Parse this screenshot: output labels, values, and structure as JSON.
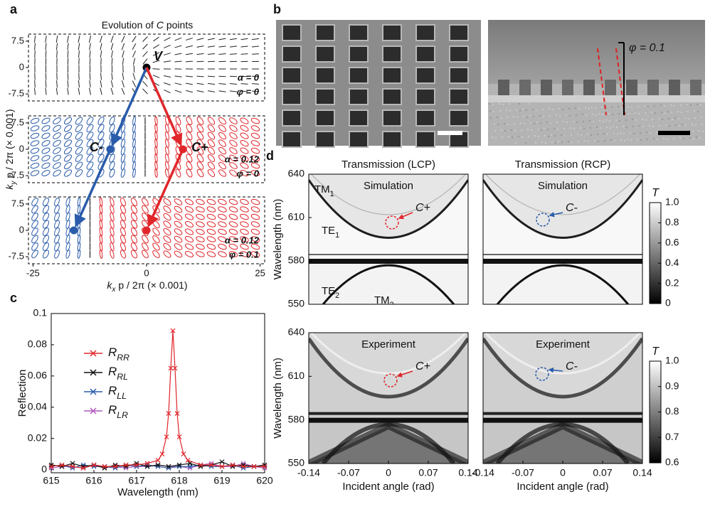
{
  "panel_labels": [
    "a",
    "b",
    "c",
    "d"
  ],
  "sem": {
    "annotation": "φ = 0.1"
  },
  "chart_data": [
    {
      "type": "polarization-map",
      "title": "Evolution of C points",
      "title_var": "C",
      "title_rest": "points",
      "title_pre": "Evolution of",
      "xlabel": {
        "var": "k",
        "sub": "x",
        "rest": " p / 2π (× 0.001)"
      },
      "ylabel": {
        "var": "k",
        "sub": "y",
        "rest": " p / 2π (× 0.001)"
      },
      "xlim": [
        -26,
        26
      ],
      "xticks": [
        -25,
        0,
        25
      ],
      "subplots": [
        {
          "ylim": [
            -9.5,
            9.5
          ],
          "yticks": [
            7.5,
            0,
            -7.5
          ],
          "annotations": [
            "α = 0",
            "φ = 0"
          ],
          "points": [
            {
              "label": "V",
              "kx": 0,
              "ky": 0,
              "color": "#000000"
            }
          ]
        },
        {
          "ylim": [
            -9.5,
            9.5
          ],
          "yticks": [
            7.5,
            0,
            -7.5
          ],
          "annotations": [
            "α = 0.12",
            "φ = 0"
          ],
          "points": [
            {
              "label": "C-",
              "kx": -8,
              "ky": 0,
              "color": "#2a5caa"
            },
            {
              "label": "C+",
              "kx": 8,
              "ky": 0,
              "color": "#e0262a"
            }
          ]
        },
        {
          "ylim": [
            -9.5,
            9.5
          ],
          "yticks": [
            7.5,
            0,
            -7.5
          ],
          "annotations": [
            "α = 0.12",
            "φ = 0.1"
          ],
          "points": [
            {
              "kx": -16,
              "ky": 0,
              "color": "#2a5caa"
            },
            {
              "kx": 0,
              "ky": 0,
              "color": "#e0262a"
            }
          ]
        }
      ]
    },
    {
      "type": "line",
      "xlabel": "Wavelength (nm)",
      "ylabel": "Reflection",
      "xlim": [
        615,
        620
      ],
      "xticks": [
        615,
        616,
        617,
        618,
        619,
        620
      ],
      "ylim": [
        -0.002,
        0.1
      ],
      "yticks": [
        0,
        0.02,
        0.04,
        0.06,
        0.08,
        0.1
      ],
      "series": [
        {
          "name": "R",
          "sub": "RR",
          "color": "#e0262a",
          "x": [
            615,
            615.25,
            615.5,
            615.75,
            616,
            616.25,
            616.5,
            616.75,
            617,
            617.25,
            617.5,
            617.6,
            617.7,
            617.75,
            617.8,
            617.85,
            617.9,
            617.95,
            618,
            618.1,
            618.2,
            618.5,
            618.75,
            619,
            619.25,
            619.5,
            619.75,
            620
          ],
          "values": [
            0.002,
            0.003,
            0.002,
            0.001,
            0.003,
            0.002,
            0.002,
            0.003,
            0.003,
            0.004,
            0.006,
            0.01,
            0.021,
            0.036,
            0.065,
            0.089,
            0.065,
            0.036,
            0.021,
            0.01,
            0.006,
            0.003,
            0.003,
            0.002,
            0.003,
            0.002,
            0.002,
            0.002
          ]
        },
        {
          "name": "R",
          "sub": "RL",
          "color": "#111111",
          "x": [
            615,
            615.25,
            615.5,
            615.75,
            616,
            616.25,
            616.5,
            616.75,
            617,
            617.25,
            617.5,
            617.75,
            618,
            618.25,
            618.5,
            618.75,
            619,
            619.25,
            619.5,
            619.75,
            620
          ],
          "values": [
            0.003,
            0.002,
            0.004,
            0.002,
            0.003,
            0.001,
            0.003,
            0.002,
            0.004,
            0.002,
            0.003,
            0.002,
            0.003,
            0.004,
            0.002,
            0.003,
            0.005,
            0.002,
            0.003,
            0.002,
            0.003
          ]
        },
        {
          "name": "R",
          "sub": "LL",
          "color": "#2a5caa",
          "x": [
            615,
            615.25,
            615.5,
            615.75,
            616,
            616.25,
            616.5,
            616.75,
            617,
            617.25,
            617.5,
            617.75,
            618,
            618.25,
            618.5,
            618.75,
            619,
            619.25,
            619.5,
            619.75,
            620
          ],
          "values": [
            0.002,
            0.003,
            0.001,
            0.003,
            0.002,
            0.002,
            0.001,
            0.003,
            0.002,
            0.003,
            0.002,
            0.001,
            0.002,
            0.002,
            0.003,
            0.002,
            0.002,
            0.003,
            0.001,
            0.002,
            0.002
          ]
        },
        {
          "name": "R",
          "sub": "LR",
          "color": "#b05cc0",
          "x": [
            615,
            615.25,
            615.5,
            615.75,
            616,
            616.25,
            616.5,
            616.75,
            617,
            617.25,
            617.5,
            617.75,
            618,
            618.25,
            618.5,
            618.75,
            619,
            619.25,
            619.5,
            619.75,
            620
          ],
          "values": [
            0.001,
            0.002,
            0.002,
            0.001,
            0.003,
            0.002,
            0.002,
            0.001,
            0.002,
            0.002,
            0.003,
            0.002,
            0.002,
            0.001,
            0.003,
            0.004,
            0.002,
            0.002,
            0.004,
            0.002,
            0.001
          ]
        }
      ]
    },
    {
      "type": "heatmap",
      "title": "Transmission (LCP)",
      "label": "Simulation",
      "ylabel": "Wavelength (nm)",
      "xlim": [
        -0.14,
        0.14
      ],
      "ylim": [
        550,
        640
      ],
      "yticks": [
        550,
        580,
        610,
        640
      ],
      "mode_labels": [
        {
          "text": "TM",
          "sub": "1"
        },
        {
          "text": "TE",
          "sub": "1"
        },
        {
          "text": "TE",
          "sub": "2"
        },
        {
          "text": "TM",
          "sub": "2"
        }
      ],
      "c_point": "C+",
      "c_color": "#e0262a"
    },
    {
      "type": "heatmap",
      "title": "Transmission (RCP)",
      "label": "Simulation",
      "xlim": [
        -0.14,
        0.14
      ],
      "ylim": [
        550,
        640
      ],
      "c_point": "C-",
      "c_color": "#2a5caa",
      "colorbar": {
        "label": "T",
        "lim": [
          0,
          1
        ],
        "ticks": [
          0,
          0.2,
          0.4,
          0.6,
          0.8,
          {
            "value": 1,
            "label": "1.0"
          }
        ]
      }
    },
    {
      "type": "heatmap",
      "label": "Experiment",
      "ylabel": "Wavelength (nm)",
      "xlabel": "Incident angle (rad)",
      "xlim": [
        -0.14,
        0.14
      ],
      "ylim": [
        550,
        640
      ],
      "xticks": [
        -0.14,
        -0.07,
        0,
        0.07,
        0.14
      ],
      "yticks": [
        550,
        580,
        610,
        640
      ],
      "c_point": "C+",
      "c_color": "#e0262a"
    },
    {
      "type": "heatmap",
      "label": "Experiment",
      "xlabel": "Incident angle (rad)",
      "xlim": [
        -0.14,
        0.14
      ],
      "ylim": [
        550,
        640
      ],
      "xticks": [
        -0.14,
        -0.07,
        0,
        0.07,
        0.14
      ],
      "c_point": "C-",
      "c_color": "#2a5caa",
      "colorbar": {
        "label": "T",
        "lim": [
          0.6,
          1
        ],
        "ticks": [
          0.6,
          0.7,
          0.8,
          0.9,
          {
            "value": 1,
            "label": "1.0"
          }
        ]
      }
    }
  ]
}
